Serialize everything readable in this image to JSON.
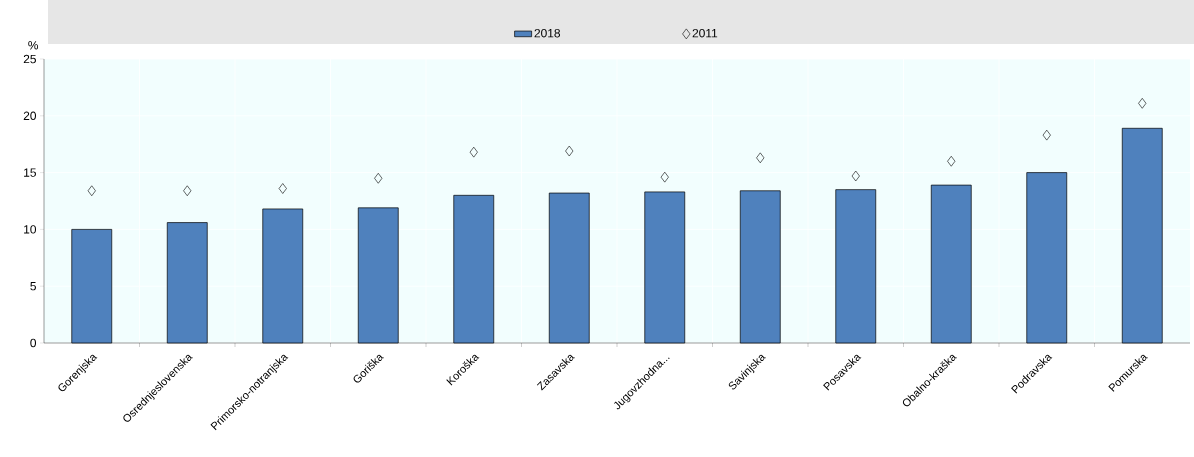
{
  "chart_data": {
    "type": "bar",
    "ylabel": "%",
    "categories": [
      "Gorenjska",
      "Osrednjeslovenska",
      "Primorsko-notranjska",
      "Goriška",
      "Koroška",
      "Zasavska",
      "Jugovzhodna...",
      "Savinjska",
      "Posavska",
      "Obalno-kraška",
      "Podravska",
      "Pomurska"
    ],
    "series": [
      {
        "name": "2018",
        "color": "#4f81bd",
        "values": [
          10.0,
          10.6,
          11.8,
          11.9,
          13.0,
          13.2,
          13.3,
          13.4,
          13.5,
          13.9,
          15.0,
          18.9
        ]
      },
      {
        "name": "2011",
        "type": "scatter",
        "marker": "diamond",
        "color": "#000000",
        "values": [
          13.4,
          13.4,
          13.6,
          14.5,
          16.8,
          16.9,
          14.6,
          16.3,
          14.7,
          16.0,
          18.3,
          21.1
        ]
      }
    ],
    "ylim": [
      0,
      25
    ],
    "yticks": [
      0,
      5,
      10,
      15,
      20,
      25
    ],
    "grid": true,
    "legend": "top"
  }
}
